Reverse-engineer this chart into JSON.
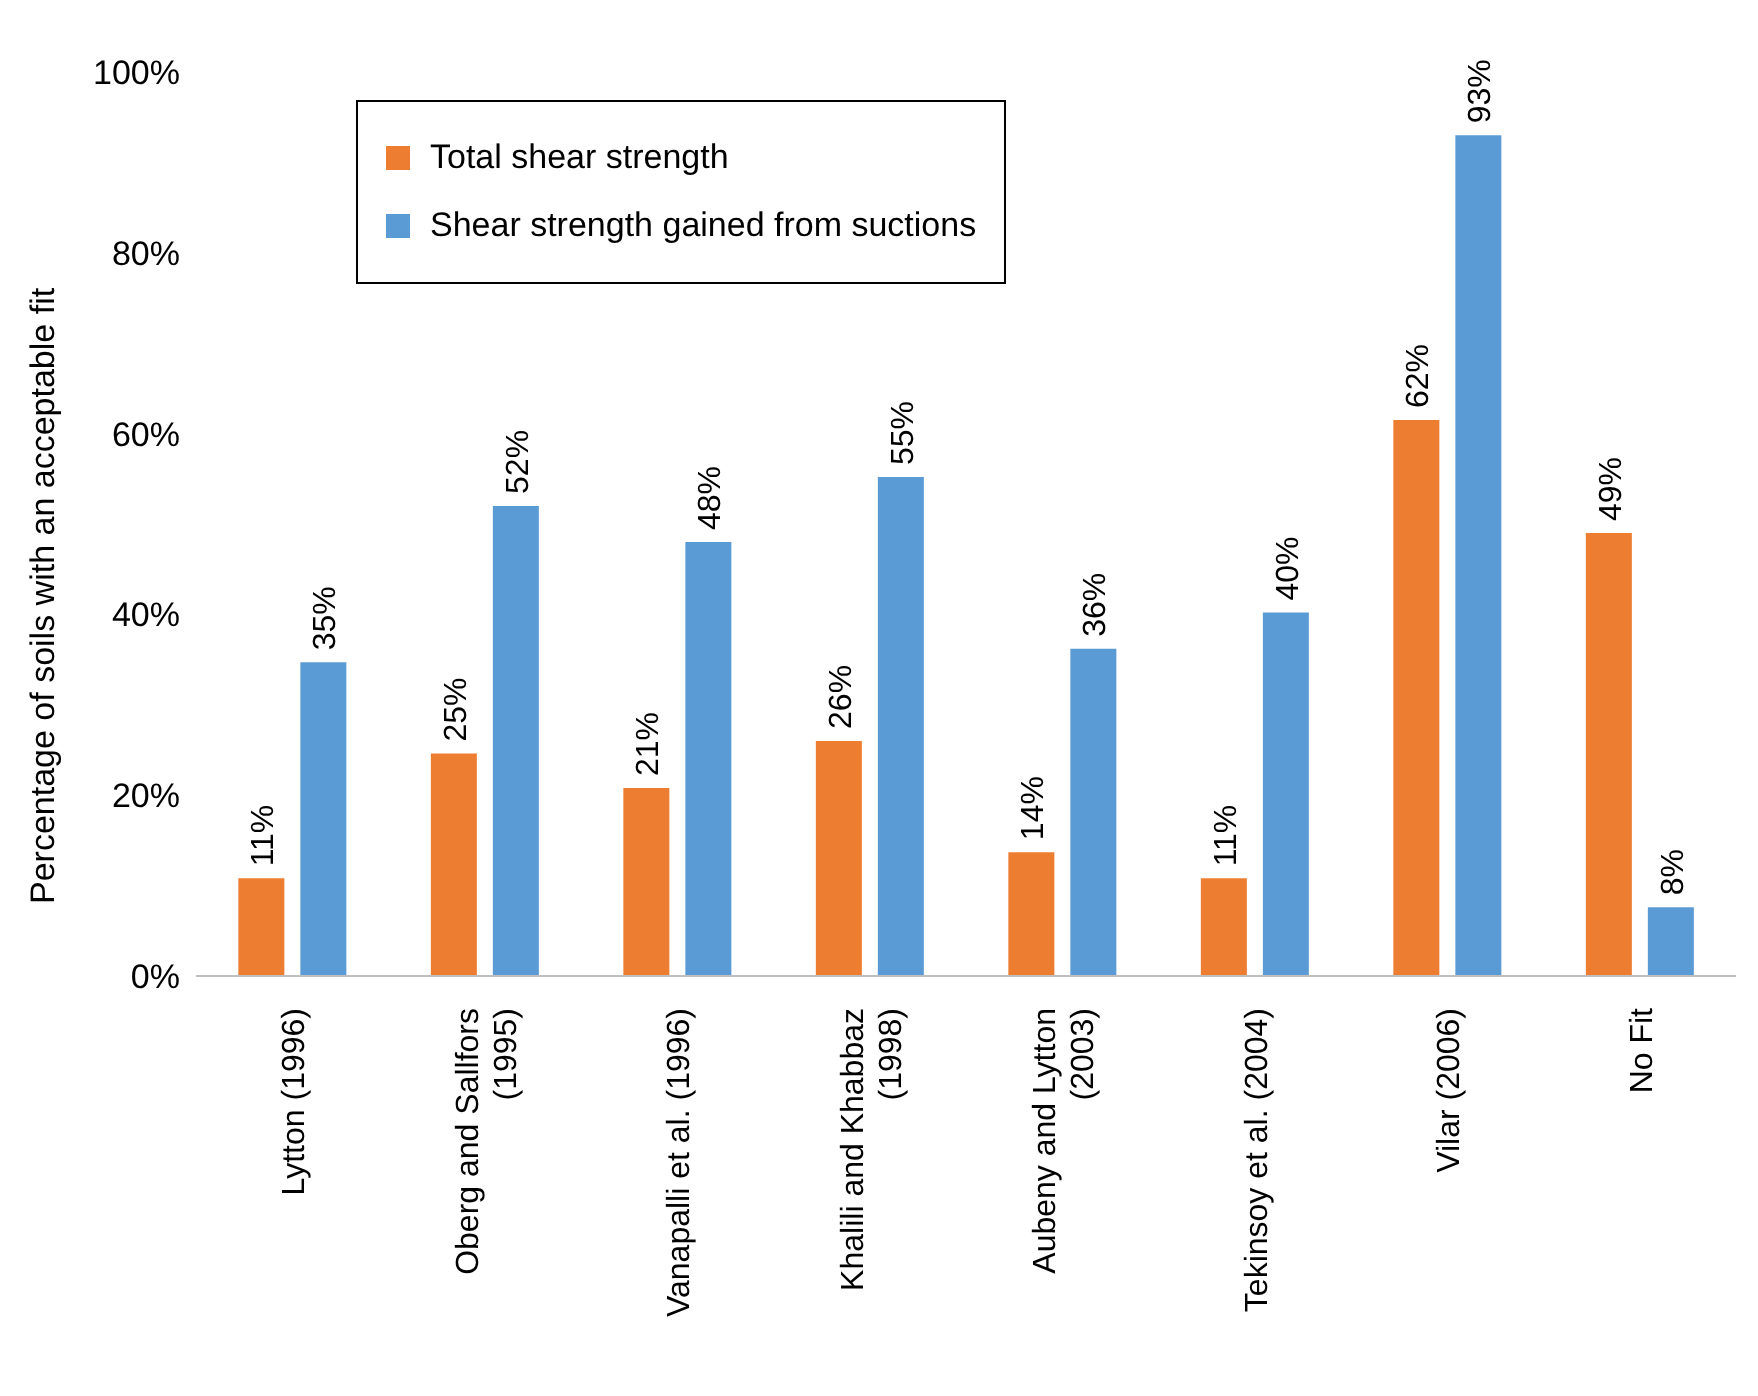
{
  "chart_data": {
    "type": "bar",
    "ylabel": "Percentage of soils with an acceptable fit",
    "categories": [
      "Lytton (1996)",
      "Oberg and Sallfors\n(1995)",
      "Vanapalli et al. (1996)",
      "Khalili and Khabbaz\n(1998)",
      "Aubeny and Lytton\n(2003)",
      "Tekinsoy et al. (2004)",
      "Vilar (2006)",
      "No Fit"
    ],
    "series": [
      {
        "name": "Total shear strength",
        "color": "#ed7d31",
        "values": [
          10.8,
          24.6,
          20.8,
          26,
          13.7,
          10.8,
          61.5,
          49
        ],
        "value_labels": [
          "11%",
          "25%",
          "21%",
          "26%",
          "14%",
          "11%",
          "62%",
          "49%"
        ]
      },
      {
        "name": "Shear strength gained from suctions",
        "color": "#5b9bd5",
        "values": [
          34.7,
          52,
          48,
          55.2,
          36.2,
          40.2,
          93,
          7.6
        ],
        "value_labels": [
          "35%",
          "52%",
          "48%",
          "55%",
          "36%",
          "40%",
          "93%",
          "8%"
        ]
      }
    ],
    "ylim": [
      0,
      100
    ],
    "yticks": [
      {
        "value": 0,
        "label": "0%"
      },
      {
        "value": 20,
        "label": "20%"
      },
      {
        "value": 40,
        "label": "40%"
      },
      {
        "value": 60,
        "label": "60%"
      },
      {
        "value": 80,
        "label": "80%"
      },
      {
        "value": 100,
        "label": "100%"
      }
    ],
    "grid": false,
    "legend": "top left"
  }
}
